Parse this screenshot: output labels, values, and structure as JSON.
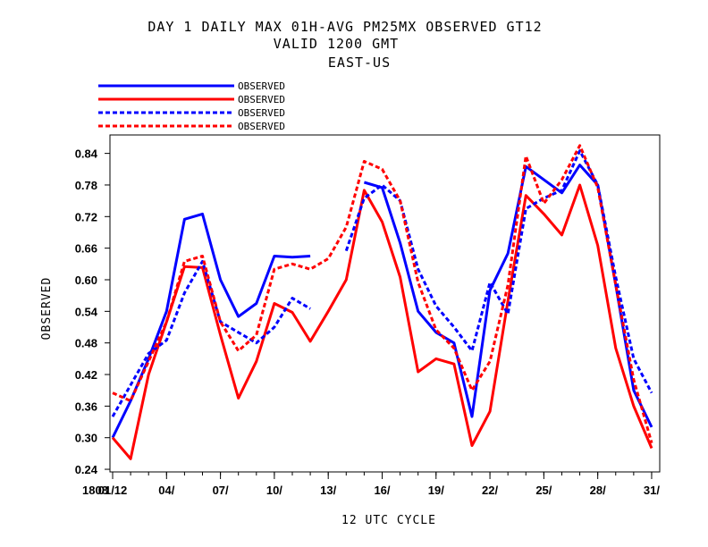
{
  "chart_data": {
    "type": "line",
    "title_lines": [
      "DAY 1 DAILY MAX   01H-AVG PM25MX OBSERVED GT12",
      "VALID 1200 GMT",
      "EAST-US"
    ],
    "xlabel": "12 UTC CYCLE",
    "ylabel": "OBSERVED",
    "x_prefix_label": "1808",
    "x": [
      1,
      2,
      3,
      4,
      5,
      6,
      7,
      8,
      9,
      10,
      11,
      12,
      13,
      14,
      15,
      16,
      17,
      18,
      19,
      20,
      21,
      22,
      23,
      24,
      25,
      26,
      27,
      28,
      29,
      30,
      31
    ],
    "x_ticks": [
      1,
      4,
      7,
      10,
      13,
      16,
      19,
      22,
      25,
      28,
      31
    ],
    "x_tick_labels": [
      "01/12",
      "04/",
      "07/",
      "10/",
      "13/",
      "16/",
      "19/",
      "22/",
      "25/",
      "28/",
      "31/"
    ],
    "xlim": [
      0.85,
      31.45
    ],
    "ylim": [
      0.235,
      0.875
    ],
    "y_ticks": [
      0.24,
      0.3,
      0.36,
      0.42,
      0.48,
      0.54,
      0.6,
      0.66,
      0.72,
      0.78,
      0.84
    ],
    "y_tick_labels": [
      "0.24",
      "0.30",
      "0.36",
      "0.42",
      "0.48",
      "0.54",
      "0.60",
      "0.66",
      "0.72",
      "0.78",
      "0.84"
    ],
    "grid": false,
    "legend_placement": "top-left, above plot",
    "series": [
      {
        "name": "OBSERVED",
        "color": "#0000ff",
        "dash": "solid",
        "values": [
          0.3,
          0.37,
          0.45,
          0.54,
          0.715,
          0.725,
          0.6,
          0.53,
          0.555,
          0.645,
          0.643,
          0.645,
          null,
          null,
          0.785,
          0.775,
          0.67,
          0.54,
          0.5,
          0.48,
          0.34,
          0.58,
          0.65,
          0.815,
          0.79,
          0.765,
          0.818,
          0.78,
          0.59,
          0.39,
          0.32
        ]
      },
      {
        "name": "OBSERVED",
        "color": "#ff0000",
        "dash": "solid",
        "values": [
          0.3,
          0.26,
          0.42,
          0.52,
          0.625,
          0.623,
          0.495,
          0.375,
          0.445,
          0.555,
          0.538,
          0.483,
          0.54,
          0.6,
          0.77,
          0.71,
          0.605,
          0.425,
          0.45,
          0.44,
          0.285,
          0.35,
          0.56,
          0.76,
          0.725,
          0.685,
          0.78,
          0.665,
          0.47,
          0.36,
          0.28
        ]
      },
      {
        "name": "OBSERVED",
        "color": "#0000ff",
        "dash": "dashed",
        "values": [
          0.34,
          0.4,
          0.46,
          0.485,
          0.575,
          0.635,
          0.52,
          0.5,
          0.48,
          0.51,
          0.565,
          0.545,
          null,
          0.655,
          0.755,
          0.78,
          0.75,
          0.62,
          0.55,
          0.51,
          0.465,
          0.595,
          0.535,
          0.735,
          0.755,
          0.77,
          0.845,
          0.78,
          0.605,
          0.45,
          0.385
        ]
      },
      {
        "name": "OBSERVED",
        "color": "#ff0000",
        "dash": "dashed",
        "values": [
          0.385,
          0.37,
          0.445,
          0.52,
          0.635,
          0.645,
          0.52,
          0.465,
          0.495,
          0.62,
          0.63,
          0.62,
          0.64,
          0.7,
          0.825,
          0.81,
          0.75,
          0.595,
          0.505,
          0.47,
          0.39,
          0.445,
          0.59,
          0.835,
          0.745,
          0.79,
          0.855,
          0.775,
          0.59,
          0.41,
          0.29
        ]
      }
    ]
  }
}
